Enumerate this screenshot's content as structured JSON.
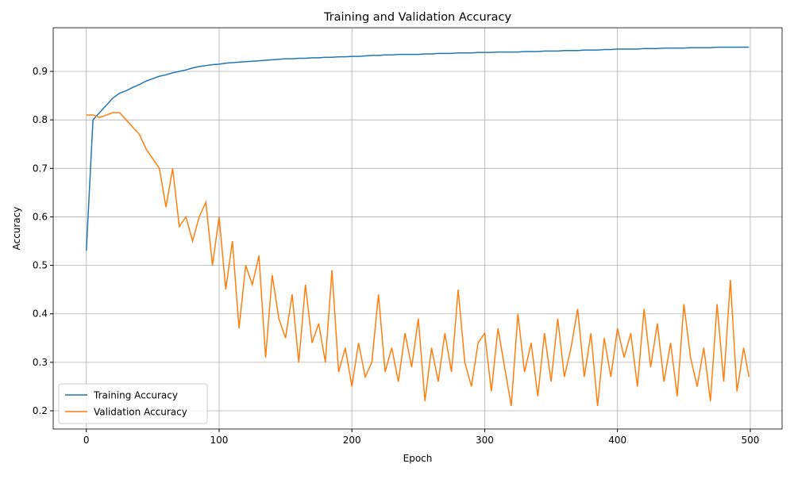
{
  "chart_data": {
    "type": "line",
    "title": "Training and Validation Accuracy",
    "x_label": "Epoch",
    "y_label": "Accuracy",
    "x": [
      0,
      5,
      10,
      15,
      20,
      25,
      30,
      35,
      40,
      45,
      50,
      55,
      60,
      65,
      70,
      75,
      80,
      85,
      90,
      95,
      100,
      105,
      110,
      115,
      120,
      125,
      130,
      135,
      140,
      145,
      150,
      155,
      160,
      165,
      170,
      175,
      180,
      185,
      190,
      195,
      200,
      205,
      210,
      215,
      220,
      225,
      230,
      235,
      240,
      245,
      250,
      255,
      260,
      265,
      270,
      275,
      280,
      285,
      290,
      295,
      300,
      305,
      310,
      315,
      320,
      325,
      330,
      335,
      340,
      345,
      350,
      355,
      360,
      365,
      370,
      375,
      380,
      385,
      390,
      395,
      400,
      405,
      410,
      415,
      420,
      425,
      430,
      435,
      440,
      445,
      450,
      455,
      460,
      465,
      470,
      475,
      480,
      485,
      490,
      495,
      499
    ],
    "series": [
      {
        "name": "Training Accuracy",
        "color": "#1f77b4",
        "values": [
          0.53,
          0.8,
          0.815,
          0.83,
          0.845,
          0.855,
          0.86,
          0.867,
          0.873,
          0.88,
          0.885,
          0.89,
          0.893,
          0.897,
          0.9,
          0.903,
          0.907,
          0.91,
          0.912,
          0.914,
          0.915,
          0.917,
          0.918,
          0.919,
          0.92,
          0.921,
          0.922,
          0.923,
          0.924,
          0.925,
          0.926,
          0.926,
          0.927,
          0.927,
          0.928,
          0.928,
          0.929,
          0.929,
          0.93,
          0.93,
          0.931,
          0.931,
          0.932,
          0.933,
          0.933,
          0.934,
          0.934,
          0.935,
          0.935,
          0.935,
          0.935,
          0.936,
          0.936,
          0.937,
          0.937,
          0.937,
          0.938,
          0.938,
          0.938,
          0.939,
          0.939,
          0.939,
          0.94,
          0.94,
          0.94,
          0.94,
          0.941,
          0.941,
          0.941,
          0.942,
          0.942,
          0.942,
          0.943,
          0.943,
          0.943,
          0.944,
          0.944,
          0.944,
          0.945,
          0.945,
          0.946,
          0.946,
          0.946,
          0.946,
          0.947,
          0.947,
          0.947,
          0.948,
          0.948,
          0.948,
          0.948,
          0.949,
          0.949,
          0.949,
          0.949,
          0.95,
          0.95,
          0.95,
          0.95,
          0.95,
          0.95
        ]
      },
      {
        "name": "Validation Accuracy",
        "color": "#ff7f0e",
        "values": [
          0.81,
          0.81,
          0.805,
          0.81,
          0.815,
          0.815,
          0.8,
          0.785,
          0.77,
          0.74,
          0.72,
          0.7,
          0.62,
          0.7,
          0.58,
          0.6,
          0.55,
          0.6,
          0.63,
          0.5,
          0.6,
          0.45,
          0.55,
          0.37,
          0.5,
          0.46,
          0.52,
          0.31,
          0.48,
          0.39,
          0.35,
          0.44,
          0.3,
          0.46,
          0.34,
          0.38,
          0.3,
          0.49,
          0.28,
          0.33,
          0.25,
          0.34,
          0.27,
          0.3,
          0.44,
          0.28,
          0.33,
          0.26,
          0.36,
          0.29,
          0.39,
          0.22,
          0.33,
          0.26,
          0.36,
          0.28,
          0.45,
          0.3,
          0.25,
          0.34,
          0.36,
          0.24,
          0.37,
          0.29,
          0.21,
          0.4,
          0.28,
          0.34,
          0.23,
          0.36,
          0.26,
          0.39,
          0.27,
          0.33,
          0.41,
          0.27,
          0.36,
          0.21,
          0.35,
          0.27,
          0.37,
          0.31,
          0.36,
          0.25,
          0.41,
          0.29,
          0.38,
          0.26,
          0.34,
          0.23,
          0.42,
          0.31,
          0.25,
          0.33,
          0.22,
          0.42,
          0.26,
          0.47,
          0.24,
          0.33,
          0.27
        ]
      }
    ],
    "xlim": [
      -24.95,
      523.95
    ],
    "xticks": [
      0,
      100,
      200,
      300,
      400,
      500
    ],
    "ylim": [
      0.1624,
      0.99
    ],
    "yticks": [
      {
        "value": 0.2,
        "label": "0.2"
      },
      {
        "value": 0.3,
        "label": "0.3"
      },
      {
        "value": 0.4,
        "label": "0.4"
      },
      {
        "value": 0.5,
        "label": "0.5"
      },
      {
        "value": 0.6,
        "label": "0.6"
      },
      {
        "value": 0.7,
        "label": "0.7"
      },
      {
        "value": 0.8,
        "label": "0.8"
      },
      {
        "value": 0.9,
        "label": "0.9"
      }
    ],
    "grid": true,
    "legend": "lower left"
  }
}
